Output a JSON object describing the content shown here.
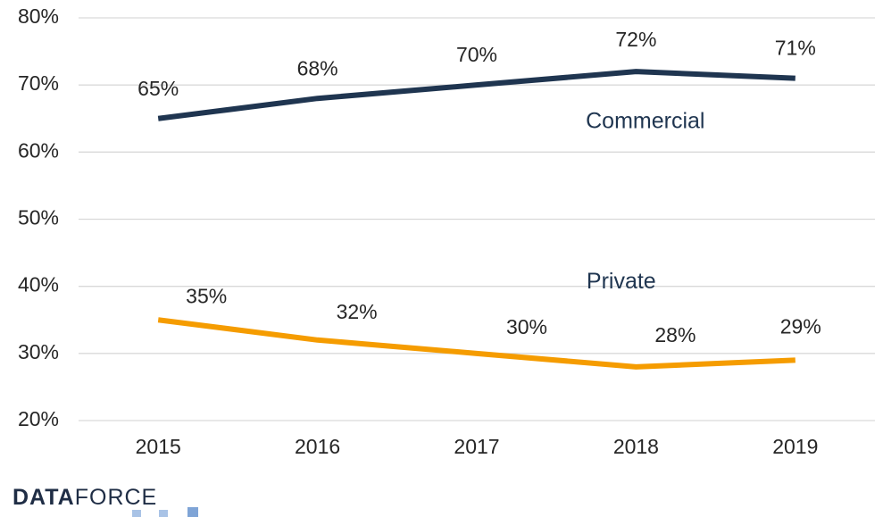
{
  "chart_data": {
    "type": "line",
    "categories": [
      "2015",
      "2016",
      "2017",
      "2018",
      "2019"
    ],
    "series": [
      {
        "name": "Commercial",
        "color": "#1f3550",
        "values": [
          65,
          68,
          70,
          72,
          71
        ],
        "value_labels": [
          "65%",
          "68%",
          "70%",
          "72%",
          "71%"
        ]
      },
      {
        "name": "Private",
        "color": "#f59c00",
        "values": [
          35,
          32,
          30,
          28,
          29
        ],
        "value_labels": [
          "35%",
          "32%",
          "30%",
          "28%",
          "29%"
        ]
      }
    ],
    "ylim": [
      20,
      80
    ],
    "yticks": [
      {
        "value": 20,
        "label": "20%"
      },
      {
        "value": 30,
        "label": "30%"
      },
      {
        "value": 40,
        "label": "40%"
      },
      {
        "value": 50,
        "label": "50%"
      },
      {
        "value": 60,
        "label": "60%"
      },
      {
        "value": 70,
        "label": "70%"
      },
      {
        "value": 80,
        "label": "80%"
      }
    ],
    "grid": true,
    "logo": [
      "DATA",
      "FORCE"
    ]
  }
}
